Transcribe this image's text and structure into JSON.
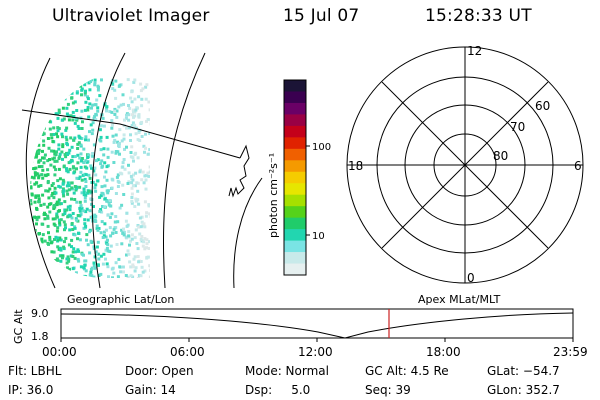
{
  "header": {
    "title": "Ultraviolet Imager",
    "date": "15 Jul 07",
    "time": "15:28:33 UT"
  },
  "colorbar": {
    "unit_label": "photon cm⁻²s⁻¹",
    "ticks": [
      "100",
      "10"
    ],
    "colors": [
      "#1b1436",
      "#3a0050",
      "#6a0066",
      "#990044",
      "#c4001a",
      "#e02200",
      "#f06000",
      "#f59a00",
      "#f5cc00",
      "#e6e600",
      "#a6e000",
      "#55d21a",
      "#20cc6a",
      "#22d6b0",
      "#7ae4e4",
      "#c8eaea",
      "#e6f0f0"
    ]
  },
  "polar_plot": {
    "clock_labels": {
      "top": "12",
      "left": "18",
      "right": "6",
      "bottom": "0"
    },
    "lat_labels": [
      "60",
      "70",
      "80"
    ]
  },
  "timeline": {
    "y_axis_label": "GC Alt",
    "y_ticks": [
      "9.0",
      "1.8"
    ],
    "left_label": "Geographic Lat/Lon",
    "right_label": "Apex MLat/MLT",
    "x_ticks": [
      "00:00",
      "06:00",
      "12:00",
      "18:00",
      "23:59"
    ],
    "marker_color": "#cc2222"
  },
  "footer": {
    "row1": {
      "flt": "Flt: LBHL",
      "door": "Door: Open",
      "mode": "Mode: Normal",
      "gc_alt": "GC Alt: 4.5 Re",
      "glat": "GLat: −54.7"
    },
    "row2": {
      "ip": "IP: 36.0",
      "gain": "Gain: 14",
      "dsp": "Dsp:     5.0",
      "seq": "Seq: 39",
      "glon": "GLon: 352.7"
    }
  }
}
